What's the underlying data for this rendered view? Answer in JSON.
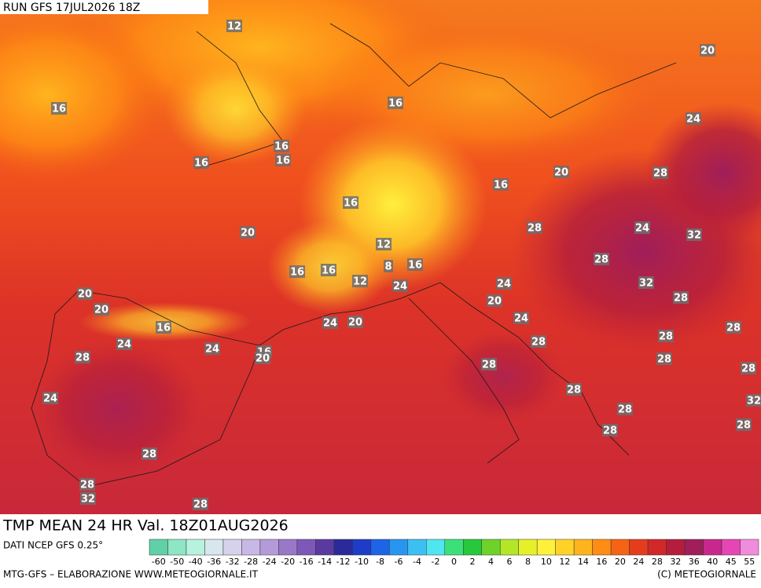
{
  "header": {
    "run": "RUN GFS 17JUL2026 18Z"
  },
  "footer": {
    "title": "TMP MEAN 24 HR Val. 18Z01AUG2026",
    "source": "DATI NCEP GFS 0.25°",
    "credit": "MTG-GFS – ELABORAZIONE WWW.METEOGIORNALE.IT",
    "copyright": "(C) METEOGIORNALE"
  },
  "map_labels": [
    12,
    20,
    16,
    16,
    24,
    16,
    16,
    16,
    20,
    28,
    16,
    16,
    28,
    24,
    32,
    20,
    12,
    16,
    8,
    28,
    16,
    16,
    12,
    24,
    24,
    32,
    20,
    20,
    28,
    20,
    16,
    24,
    20,
    24,
    28,
    24,
    24,
    16,
    20,
    28,
    28,
    28,
    28,
    28,
    28,
    24,
    28,
    32,
    28,
    28,
    28,
    28,
    28,
    32,
    28
  ],
  "color_scale": {
    "labels": [
      -60,
      -50,
      -40,
      -36,
      -32,
      -28,
      -24,
      -20,
      -16,
      -14,
      -12,
      -10,
      -8,
      -6,
      -4,
      -2,
      0,
      2,
      4,
      6,
      8,
      10,
      12,
      14,
      16,
      20,
      24,
      28,
      32,
      36,
      40,
      45,
      55
    ],
    "colors": [
      "#5fd0a8",
      "#8de6c4",
      "#b8f2de",
      "#d8e6ee",
      "#d6d2ec",
      "#c8b8e6",
      "#b49ad8",
      "#9a78c8",
      "#7e58b8",
      "#5a3aa0",
      "#2a2a9a",
      "#1e3cc8",
      "#1e64e6",
      "#2896f0",
      "#3cc0f4",
      "#50e6f0",
      "#3ce07a",
      "#28c83c",
      "#6ed22a",
      "#b4e628",
      "#e6f028",
      "#fff03c",
      "#ffd228",
      "#ffb41e",
      "#ff8c14",
      "#f56414",
      "#e63c1e",
      "#d22828",
      "#b41e3c",
      "#a01e5a",
      "#c8288c",
      "#e646b4",
      "#f08cdc"
    ]
  }
}
